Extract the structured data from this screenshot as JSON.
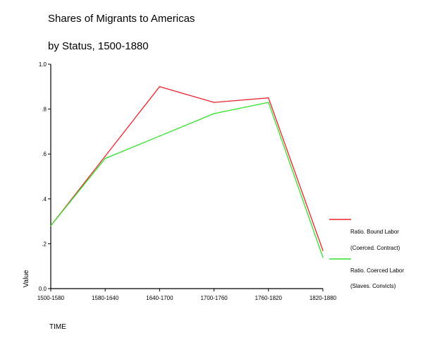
{
  "chart_data": {
    "type": "line",
    "title_line1": "Shares of Migrants to Americas",
    "title_line2": "by Status, 1500-1880",
    "xlabel": "TIME",
    "ylabel": "Value",
    "categories": [
      "1500-1580",
      "1580-1640",
      "1640-1700",
      "1700-1760",
      "1760-1820",
      "1820-1880"
    ],
    "ylim": [
      0,
      1
    ],
    "yticks": [
      {
        "v": 0,
        "label": "0.0"
      },
      {
        "v": 0.2,
        "label": ".2"
      },
      {
        "v": 0.4,
        "label": ".4"
      },
      {
        "v": 0.6,
        "label": ".6"
      },
      {
        "v": 0.8,
        "label": ".8"
      },
      {
        "v": 1.0,
        "label": "1.0"
      }
    ],
    "grid": false,
    "legend_position": "right",
    "series": [
      {
        "name": "Ratio. Bound Labor (Coerced. Contract)",
        "legend_lines": [
          "Ratio. Bound Labor",
          "(Coerced. Contract)"
        ],
        "color": "#e8242b",
        "values": [
          0.28,
          0.59,
          0.9,
          0.83,
          0.85,
          0.17
        ]
      },
      {
        "name": "Ratio. Coerced Labor (Slaves. Convicts)",
        "legend_lines": [
          "Ratio. Coerced Labor",
          "(Slaves. Convicts)"
        ],
        "color": "#33e22a",
        "values": [
          0.28,
          0.58,
          0.68,
          0.78,
          0.83,
          0.14
        ]
      }
    ]
  }
}
